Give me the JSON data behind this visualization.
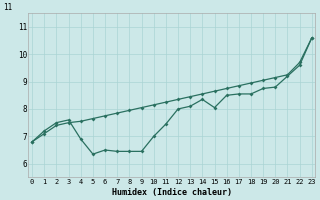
{
  "xlabel": "Humidex (Indice chaleur)",
  "bg_color": "#cce8e8",
  "line_color": "#2a7060",
  "grid_color": "#aad4d4",
  "x_ticks": [
    0,
    1,
    2,
    3,
    4,
    5,
    6,
    7,
    8,
    9,
    10,
    11,
    12,
    13,
    14,
    15,
    16,
    17,
    18,
    19,
    20,
    21,
    22,
    23
  ],
  "y_ticks": [
    6,
    7,
    8,
    9,
    10,
    11
  ],
  "ylim": [
    5.5,
    11.5
  ],
  "xlim": [
    -0.3,
    23.3
  ],
  "line1_x": [
    0,
    1,
    2,
    3,
    4,
    5,
    6,
    7,
    8,
    9,
    10,
    11,
    12,
    13,
    14,
    15,
    16,
    17,
    18,
    19,
    20,
    21,
    22,
    23
  ],
  "line1_y": [
    6.8,
    7.1,
    7.4,
    7.5,
    7.55,
    7.65,
    7.75,
    7.85,
    7.95,
    8.05,
    8.15,
    8.25,
    8.35,
    8.45,
    8.55,
    8.65,
    8.75,
    8.85,
    8.95,
    9.05,
    9.15,
    9.25,
    9.7,
    10.6
  ],
  "line2_x": [
    0,
    1,
    2,
    3,
    4,
    5,
    6,
    7,
    8,
    9,
    10,
    11,
    12,
    13,
    14,
    15,
    16,
    17,
    18,
    19,
    20,
    21,
    22,
    23
  ],
  "line2_y": [
    6.8,
    7.2,
    7.5,
    7.6,
    6.9,
    6.35,
    6.5,
    6.45,
    6.45,
    6.45,
    7.0,
    7.45,
    8.0,
    8.1,
    8.35,
    8.05,
    8.5,
    8.55,
    8.55,
    8.75,
    8.8,
    9.2,
    9.6,
    10.6
  ],
  "top_label": "11",
  "xlabel_fontsize": 6,
  "tick_fontsize": 5,
  "ytick_fontsize": 5.5
}
